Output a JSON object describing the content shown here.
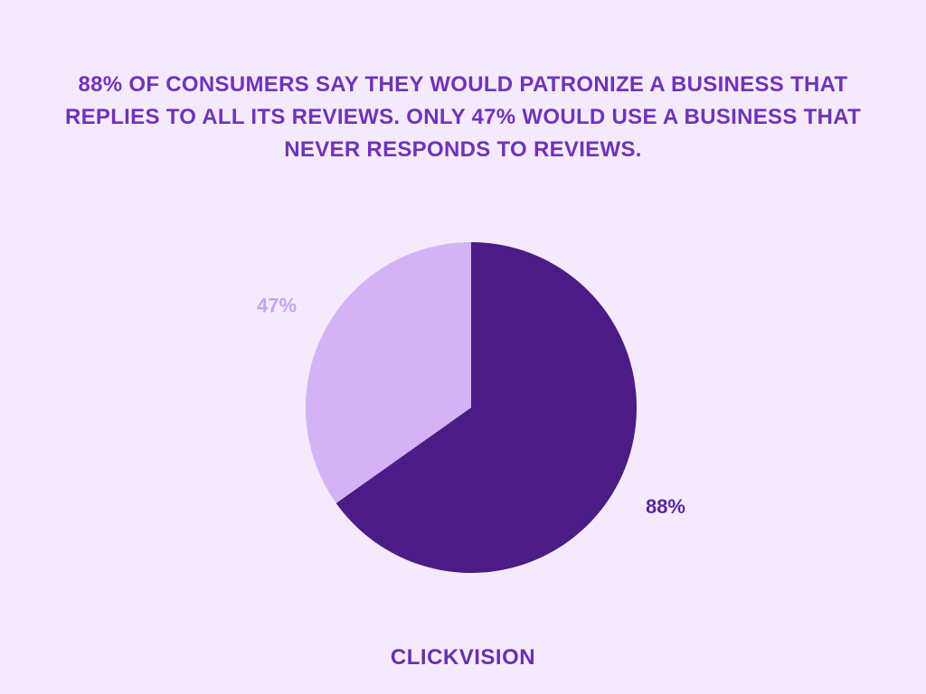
{
  "chart_data": {
    "type": "pie",
    "title": "88% OF CONSUMERS SAY THEY WOULD PATRONIZE A BUSINESS THAT REPLIES TO ALL ITS REVIEWS. ONLY 47% WOULD USE A BUSINESS THAT NEVER RESPONDS TO REVIEWS.",
    "values": [
      88,
      47
    ],
    "value_labels": [
      "88%",
      "47%"
    ],
    "colors": [
      "#4b1c85",
      "#d3b2f6"
    ],
    "label_colors": [
      "#5a27a0",
      "#c7a4ee"
    ]
  },
  "footer": {
    "logo": "CLICKVISION"
  }
}
